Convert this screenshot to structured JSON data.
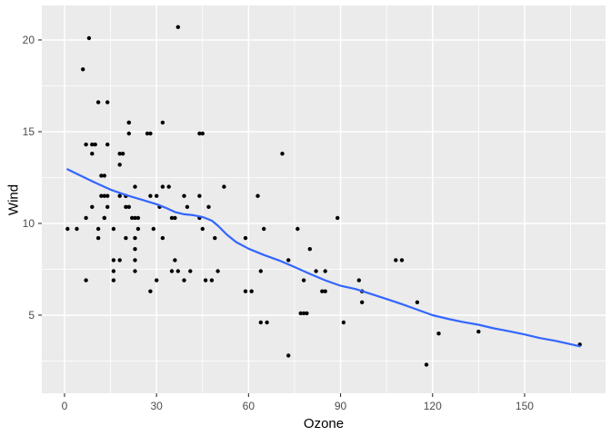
{
  "figure": {
    "background": "#FFFFFF",
    "panel_bg": "#EBEBEB",
    "grid_color": "#FFFFFF",
    "point_color": "#000000",
    "smooth_color": "#3366FF",
    "tick_label_color": "#4D4D4D",
    "tick_mark_color": "#333333",
    "axis_title_color": "#000000"
  },
  "chart_data": {
    "type": "scatter",
    "title": "",
    "xlabel": "Ozone",
    "ylabel": "Wind",
    "legend": "none",
    "grid": "on",
    "x_ticks": [
      0,
      30,
      60,
      90,
      120,
      150
    ],
    "x_minor_ticks": [
      15,
      45,
      75,
      105,
      135,
      165
    ],
    "y_ticks": [
      5,
      10,
      15,
      20
    ],
    "y_minor_ticks": [
      2.5,
      7.5,
      12.5,
      17.5
    ],
    "xlim": [
      -7.4,
      176.4
    ],
    "ylim": [
      0.74,
      21.88
    ],
    "points": [
      [
        41,
        7.4
      ],
      [
        36,
        8
      ],
      [
        12,
        12.6
      ],
      [
        18,
        11.5
      ],
      [
        28,
        14.9
      ],
      [
        23,
        8.6
      ],
      [
        19,
        13.8
      ],
      [
        8,
        20.1
      ],
      [
        7,
        6.9
      ],
      [
        16,
        9.7
      ],
      [
        11,
        9.2
      ],
      [
        14,
        10.9
      ],
      [
        18,
        13.2
      ],
      [
        14,
        11.5
      ],
      [
        34,
        12
      ],
      [
        6,
        18.4
      ],
      [
        30,
        11.5
      ],
      [
        11,
        9.7
      ],
      [
        1,
        9.7
      ],
      [
        11,
        16.6
      ],
      [
        4,
        9.7
      ],
      [
        32,
        12
      ],
      [
        23,
        12
      ],
      [
        45,
        14.9
      ],
      [
        115,
        5.7
      ],
      [
        37,
        7.4
      ],
      [
        29,
        9.7
      ],
      [
        71,
        13.8
      ],
      [
        39,
        11.5
      ],
      [
        23,
        8
      ],
      [
        21,
        14.9
      ],
      [
        37,
        20.7
      ],
      [
        20,
        9.2
      ],
      [
        12,
        11.5
      ],
      [
        13,
        10.3
      ],
      [
        135,
        4.1
      ],
      [
        49,
        9.2
      ],
      [
        32,
        9.2
      ],
      [
        64,
        4.6
      ],
      [
        40,
        10.9
      ],
      [
        77,
        5.1
      ],
      [
        97,
        6.3
      ],
      [
        97,
        5.7
      ],
      [
        85,
        7.4
      ],
      [
        10,
        14.3
      ],
      [
        27,
        14.9
      ],
      [
        7,
        14.3
      ],
      [
        48,
        6.9
      ],
      [
        35,
        10.3
      ],
      [
        61,
        6.3
      ],
      [
        79,
        5.1
      ],
      [
        63,
        11.5
      ],
      [
        16,
        6.9
      ],
      [
        80,
        8.6
      ],
      [
        108,
        8
      ],
      [
        20,
        11.5
      ],
      [
        52,
        12
      ],
      [
        82,
        7.4
      ],
      [
        50,
        7.4
      ],
      [
        64,
        7.4
      ],
      [
        59,
        9.2
      ],
      [
        39,
        6.9
      ],
      [
        9,
        13.8
      ],
      [
        16,
        7.4
      ],
      [
        78,
        6.9
      ],
      [
        35,
        7.4
      ],
      [
        66,
        4.6
      ],
      [
        122,
        4
      ],
      [
        89,
        10.3
      ],
      [
        110,
        8
      ],
      [
        44,
        11.5
      ],
      [
        28,
        6.3
      ],
      [
        65,
        9.7
      ],
      [
        22,
        10.3
      ],
      [
        59,
        6.3
      ],
      [
        23,
        7.4
      ],
      [
        31,
        10.9
      ],
      [
        44,
        10.3
      ],
      [
        21,
        15.5
      ],
      [
        9,
        14.3
      ],
      [
        45,
        9.7
      ],
      [
        168,
        3.4
      ],
      [
        73,
        8
      ],
      [
        76,
        9.7
      ],
      [
        118,
        2.3
      ],
      [
        84,
        6.3
      ],
      [
        85,
        6.3
      ],
      [
        96,
        6.9
      ],
      [
        78,
        5.1
      ],
      [
        73,
        2.8
      ],
      [
        91,
        4.6
      ],
      [
        47,
        10.9
      ],
      [
        32,
        15.5
      ],
      [
        20,
        10.9
      ],
      [
        23,
        10.3
      ],
      [
        21,
        10.9
      ],
      [
        24,
        9.7
      ],
      [
        44,
        14.9
      ],
      [
        21,
        15.5
      ],
      [
        28,
        11.5
      ],
      [
        9,
        10.9
      ],
      [
        13,
        11.5
      ],
      [
        46,
        6.9
      ],
      [
        18,
        13.8
      ],
      [
        13,
        10.3
      ],
      [
        24,
        10.3
      ],
      [
        16,
        8
      ],
      [
        13,
        12.6
      ],
      [
        23,
        9.2
      ],
      [
        36,
        10.3
      ],
      [
        7,
        10.3
      ],
      [
        14,
        16.6
      ],
      [
        30,
        6.9
      ],
      [
        14,
        14.3
      ],
      [
        18,
        8
      ],
      [
        20,
        11.5
      ]
    ],
    "smooth_line": [
      [
        1,
        12.95
      ],
      [
        5,
        12.62
      ],
      [
        10,
        12.22
      ],
      [
        15,
        11.84
      ],
      [
        20,
        11.55
      ],
      [
        25,
        11.3
      ],
      [
        30,
        11.05
      ],
      [
        33,
        10.85
      ],
      [
        36,
        10.62
      ],
      [
        39,
        10.5
      ],
      [
        42,
        10.45
      ],
      [
        45,
        10.35
      ],
      [
        48,
        10.15
      ],
      [
        50,
        9.88
      ],
      [
        53,
        9.38
      ],
      [
        56,
        8.98
      ],
      [
        60,
        8.62
      ],
      [
        65,
        8.28
      ],
      [
        70,
        7.98
      ],
      [
        75,
        7.62
      ],
      [
        80,
        7.25
      ],
      [
        85,
        6.9
      ],
      [
        90,
        6.6
      ],
      [
        95,
        6.42
      ],
      [
        100,
        6.15
      ],
      [
        105,
        5.88
      ],
      [
        110,
        5.6
      ],
      [
        115,
        5.3
      ],
      [
        120,
        5.0
      ],
      [
        125,
        4.8
      ],
      [
        130,
        4.62
      ],
      [
        135,
        4.48
      ],
      [
        140,
        4.28
      ],
      [
        145,
        4.12
      ],
      [
        150,
        3.95
      ],
      [
        155,
        3.75
      ],
      [
        160,
        3.6
      ],
      [
        165,
        3.42
      ],
      [
        168,
        3.3
      ]
    ]
  }
}
